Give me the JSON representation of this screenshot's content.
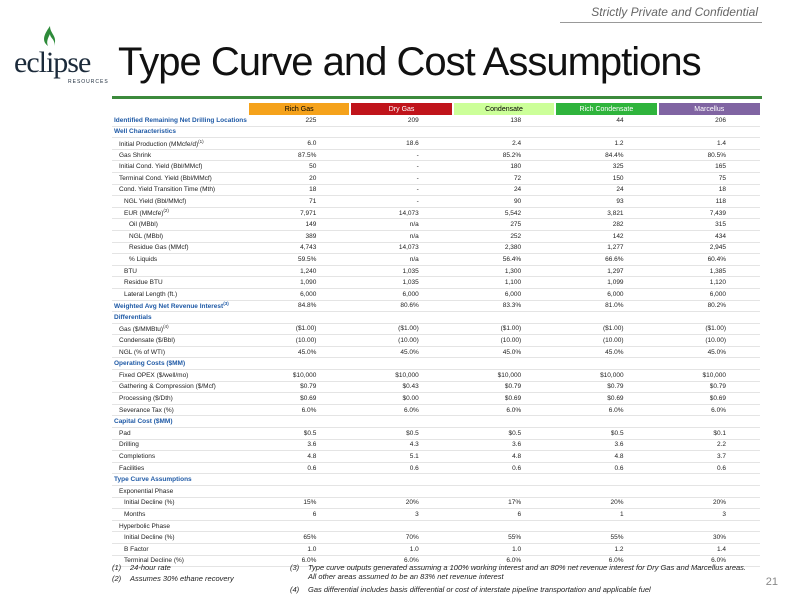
{
  "header": {
    "confidential": "Strictly Private and Confidential",
    "logo": "eclipse",
    "logo_sub": "RESOURCES",
    "title": "Type Curve and Cost Assumptions",
    "page_number": "21"
  },
  "table": {
    "columns": [
      {
        "name": "Rich Gas",
        "color": "#f5a21b",
        "text_color": "#000000"
      },
      {
        "name": "Dry Gas",
        "color": "#c0141b",
        "text_color": "#ffffff"
      },
      {
        "name": "Condensate",
        "color": "#ccff99",
        "text_color": "#000000"
      },
      {
        "name": "Rich Condensate",
        "color": "#2fb43c",
        "text_color": "#ffffff"
      },
      {
        "name": "Marcellus",
        "color": "#8064a2",
        "text_color": "#ffffff"
      }
    ],
    "rows": [
      {
        "label": "Identified Remaining Net Drilling Locations",
        "section": true,
        "level": 0,
        "values": [
          "225",
          "209",
          "138",
          "44",
          "206"
        ]
      },
      {
        "label": "Well Characteristics",
        "section": true,
        "level": 0
      },
      {
        "label": "Initial Production (MMcfe/d)",
        "note": "(1)",
        "level": 1,
        "values": [
          "6.0",
          "18.6",
          "2.4",
          "1.2",
          "1.4"
        ]
      },
      {
        "label": "Gas Shrink",
        "level": 1,
        "values": [
          "87.5%",
          "-",
          "85.2%",
          "84.4%",
          "80.5%"
        ]
      },
      {
        "label": "Initial Cond. Yield (Bbl/MMcf)",
        "level": 1,
        "values": [
          "50",
          "-",
          "180",
          "325",
          "165"
        ]
      },
      {
        "label": "Terminal Cond. Yield (Bbl/MMcf)",
        "level": 1,
        "values": [
          "20",
          "-",
          "72",
          "150",
          "75"
        ]
      },
      {
        "label": "Cond. Yield Transition Time (Mth)",
        "level": 1,
        "values": [
          "18",
          "-",
          "24",
          "24",
          "18"
        ]
      },
      {
        "label": "NGL Yield (Bbl/MMcf)",
        "level": 2,
        "values": [
          "71",
          "-",
          "90",
          "93",
          "118"
        ]
      },
      {
        "label": "EUR (MMcfe)",
        "note": "(2)",
        "level": 2,
        "values": [
          "7,971",
          "14,073",
          "5,542",
          "3,821",
          "7,439"
        ]
      },
      {
        "label": "Oil (MBbl)",
        "level": 3,
        "values": [
          "149",
          "n/a",
          "275",
          "282",
          "315"
        ]
      },
      {
        "label": "NGL (MBbl)",
        "level": 3,
        "values": [
          "389",
          "n/a",
          "252",
          "142",
          "434"
        ]
      },
      {
        "label": "Residue Gas (MMcf)",
        "level": 3,
        "values": [
          "4,743",
          "14,073",
          "2,380",
          "1,277",
          "2,945"
        ]
      },
      {
        "label": "% Liquids",
        "level": 3,
        "values": [
          "59.5%",
          "n/a",
          "56.4%",
          "66.6%",
          "60.4%"
        ]
      },
      {
        "label": "BTU",
        "level": 2,
        "values": [
          "1,240",
          "1,035",
          "1,300",
          "1,297",
          "1,385"
        ]
      },
      {
        "label": "Residue BTU",
        "level": 2,
        "values": [
          "1,090",
          "1,035",
          "1,100",
          "1,099",
          "1,120"
        ]
      },
      {
        "label": "Lateral Length (ft.)",
        "level": 2,
        "values": [
          "6,000",
          "6,000",
          "6,000",
          "6,000",
          "6,000"
        ]
      },
      {
        "label": "Weighted Avg Net Revenue Interest",
        "note": "(3)",
        "section": true,
        "level": 0,
        "values": [
          "84.8%",
          "80.6%",
          "83.3%",
          "81.0%",
          "80.2%"
        ]
      },
      {
        "label": "Differentials",
        "section": true,
        "level": 0
      },
      {
        "label": "Gas ($/MMBtu)",
        "note": "(4)",
        "level": 1,
        "values": [
          "($1.00)",
          "($1.00)",
          "($1.00)",
          "($1.00)",
          "($1.00)"
        ]
      },
      {
        "label": "Condensate ($/Bbl)",
        "level": 1,
        "values": [
          "(10.00)",
          "(10.00)",
          "(10.00)",
          "(10.00)",
          "(10.00)"
        ]
      },
      {
        "label": "NGL (% of WTI)",
        "level": 1,
        "values": [
          "45.0%",
          "45.0%",
          "45.0%",
          "45.0%",
          "45.0%"
        ]
      },
      {
        "label": "Operating Costs ($MM)",
        "section": true,
        "level": 0
      },
      {
        "label": "Fixed OPEX ($/well/mo)",
        "level": 1,
        "values": [
          "$10,000",
          "$10,000",
          "$10,000",
          "$10,000",
          "$10,000"
        ]
      },
      {
        "label": "Gathering & Compression ($/Mcf)",
        "level": 1,
        "values": [
          "$0.79",
          "$0.43",
          "$0.79",
          "$0.79",
          "$0.79"
        ]
      },
      {
        "label": "Processing ($/Dth)",
        "level": 1,
        "values": [
          "$0.69",
          "$0.00",
          "$0.69",
          "$0.69",
          "$0.69"
        ]
      },
      {
        "label": "Severance Tax (%)",
        "level": 1,
        "values": [
          "6.0%",
          "6.0%",
          "6.0%",
          "6.0%",
          "6.0%"
        ]
      },
      {
        "label": "Capital Cost ($MM)",
        "section": true,
        "level": 0
      },
      {
        "label": "Pad",
        "level": 1,
        "values": [
          "$0.5",
          "$0.5",
          "$0.5",
          "$0.5",
          "$0.1"
        ]
      },
      {
        "label": "Drilling",
        "level": 1,
        "values": [
          "3.6",
          "4.3",
          "3.6",
          "3.6",
          "2.2"
        ]
      },
      {
        "label": "Completions",
        "level": 1,
        "values": [
          "4.8",
          "5.1",
          "4.8",
          "4.8",
          "3.7"
        ]
      },
      {
        "label": "Facilities",
        "level": 1,
        "values": [
          "0.6",
          "0.6",
          "0.6",
          "0.6",
          "0.6"
        ]
      },
      {
        "label": "Type Curve Assumptions",
        "section": true,
        "level": 0
      },
      {
        "label": "Exponential Phase",
        "level": 1
      },
      {
        "label": "Initial Decline (%)",
        "level": 2,
        "values": [
          "15%",
          "20%",
          "17%",
          "20%",
          "20%"
        ]
      },
      {
        "label": "Months",
        "level": 2,
        "values": [
          "6",
          "3",
          "6",
          "1",
          "3"
        ]
      },
      {
        "label": "Hyperbolic Phase",
        "level": 1
      },
      {
        "label": "Initial Decline (%)",
        "level": 2,
        "values": [
          "65%",
          "70%",
          "55%",
          "55%",
          "30%"
        ]
      },
      {
        "label": "B Factor",
        "level": 2,
        "values": [
          "1.0",
          "1.0",
          "1.0",
          "1.2",
          "1.4"
        ]
      },
      {
        "label": "Terminal Decline (%)",
        "level": 2,
        "values": [
          "6.0%",
          "6.0%",
          "6.0%",
          "6.0%",
          "6.0%"
        ]
      }
    ]
  },
  "footnotes": [
    {
      "marker": "(1)",
      "text": "24-hour rate"
    },
    {
      "marker": "(2)",
      "text": "Assumes 30% ethane recovery"
    },
    {
      "marker": "(3)",
      "text": "Type curve outputs generated assuming a 100% working interest and an 80% net revenue interest for Dry Gas and Marcellus areas. All other areas assumed to be an 83% net revenue interest"
    },
    {
      "marker": "(4)",
      "text": "Gas differential includes basis differential or cost of interstate pipeline transportation and applicable fuel"
    }
  ]
}
